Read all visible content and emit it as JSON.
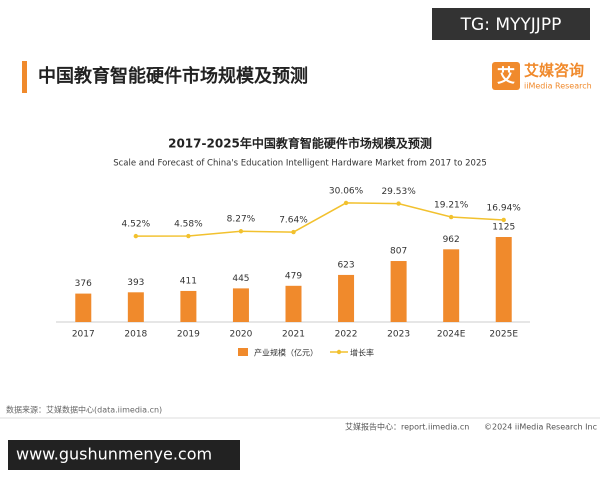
{
  "watermark_top": "TG: MYYJJPP",
  "header": {
    "title": "中国教育智能硬件市场规模及预测",
    "logo_mark": "艾",
    "logo_name": "艾媒咨询",
    "logo_sub": "iiMedia Research"
  },
  "chart_data": {
    "type": "bar",
    "title": "2017-2025年中国教育智能硬件市场规模及预测",
    "subtitle": "Scale and Forecast of China's Education Intelligent Hardware Market from 2017 to 2025",
    "categories": [
      "2017",
      "2018",
      "2019",
      "2020",
      "2021",
      "2022",
      "2023",
      "2024E",
      "2025E"
    ],
    "series": [
      {
        "name": "产业规模（亿元）",
        "type": "bar",
        "color": "#f08a2c",
        "values": [
          376,
          393,
          411,
          445,
          479,
          623,
          807,
          962,
          1125
        ]
      },
      {
        "name": "增长率",
        "type": "line",
        "color": "#f2c12e",
        "values": [
          null,
          4.52,
          4.58,
          8.27,
          7.64,
          30.06,
          29.53,
          19.21,
          16.94
        ],
        "value_labels": [
          null,
          "4.52%",
          "4.58%",
          "8.27%",
          "7.64%",
          "30.06%",
          "29.53%",
          "19.21%",
          "16.94%"
        ]
      }
    ]
  },
  "source": "数据来源：艾媒数据中心(data.iimedia.cn)",
  "footer": {
    "site": "艾媒报告中心：report.iimedia.cn",
    "copyright": "©2024 iiMedia Research Inc"
  },
  "watermark_bottom": "www.gushunmenye.com"
}
